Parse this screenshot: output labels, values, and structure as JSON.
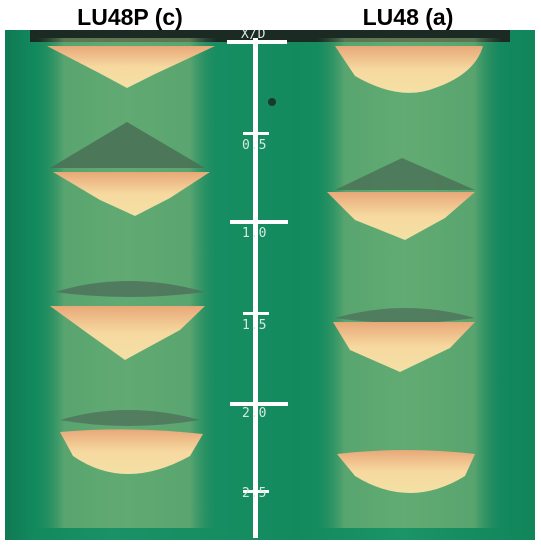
{
  "titles": {
    "left": "LU48P (c)",
    "right": "LU48 (a)"
  },
  "scale": {
    "axis_label": "X/D",
    "ticks": [
      "0.5",
      "1.0",
      "1.5",
      "2.0",
      "2.5"
    ]
  },
  "colors": {
    "background_green": "#168c61",
    "plume_yellow": "#f2d68a",
    "shock_dark": "#3d6b56",
    "ruler_white": "#ffffff"
  }
}
